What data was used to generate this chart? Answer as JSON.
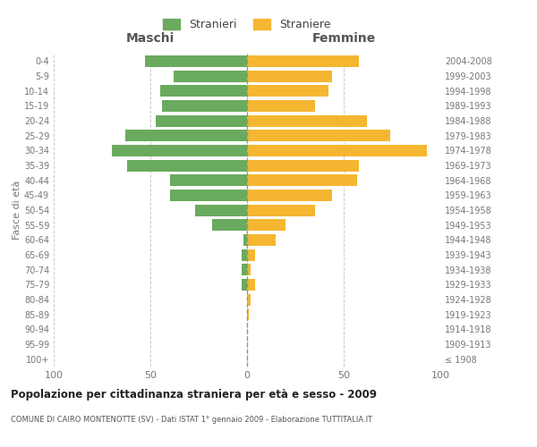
{
  "age_groups": [
    "100+",
    "95-99",
    "90-94",
    "85-89",
    "80-84",
    "75-79",
    "70-74",
    "65-69",
    "60-64",
    "55-59",
    "50-54",
    "45-49",
    "40-44",
    "35-39",
    "30-34",
    "25-29",
    "20-24",
    "15-19",
    "10-14",
    "5-9",
    "0-4"
  ],
  "birth_years": [
    "≤ 1908",
    "1909-1913",
    "1914-1918",
    "1919-1923",
    "1924-1928",
    "1929-1933",
    "1934-1938",
    "1939-1943",
    "1944-1948",
    "1949-1953",
    "1954-1958",
    "1959-1963",
    "1964-1968",
    "1969-1973",
    "1974-1978",
    "1979-1983",
    "1984-1988",
    "1989-1993",
    "1994-1998",
    "1999-2003",
    "2004-2008"
  ],
  "maschi": [
    0,
    0,
    0,
    0,
    0,
    3,
    3,
    3,
    2,
    18,
    27,
    40,
    40,
    62,
    70,
    63,
    47,
    44,
    45,
    38,
    53
  ],
  "femmine": [
    0,
    0,
    0,
    1,
    2,
    4,
    2,
    4,
    15,
    20,
    35,
    44,
    57,
    58,
    93,
    74,
    62,
    35,
    42,
    44,
    58
  ],
  "maschi_color": "#6aaa5e",
  "femmine_color": "#f5b731",
  "background_color": "#ffffff",
  "grid_color": "#cccccc",
  "title": "Popolazione per cittadinanza straniera per età e sesso - 2009",
  "subtitle": "COMUNE DI CAIRO MONTENOTTE (SV) - Dati ISTAT 1° gennaio 2009 - Elaborazione TUTTITALIA.IT",
  "ylabel_left": "Fasce di età",
  "xlabel_left": "Maschi",
  "xlabel_right": "Femmine",
  "legend_stranieri": "Stranieri",
  "legend_straniere": "Straniere",
  "xlim": 100,
  "label_color": "#777777",
  "title_color": "#222222",
  "subtitle_color": "#555555",
  "right_ylabel_color": "#cc7700"
}
